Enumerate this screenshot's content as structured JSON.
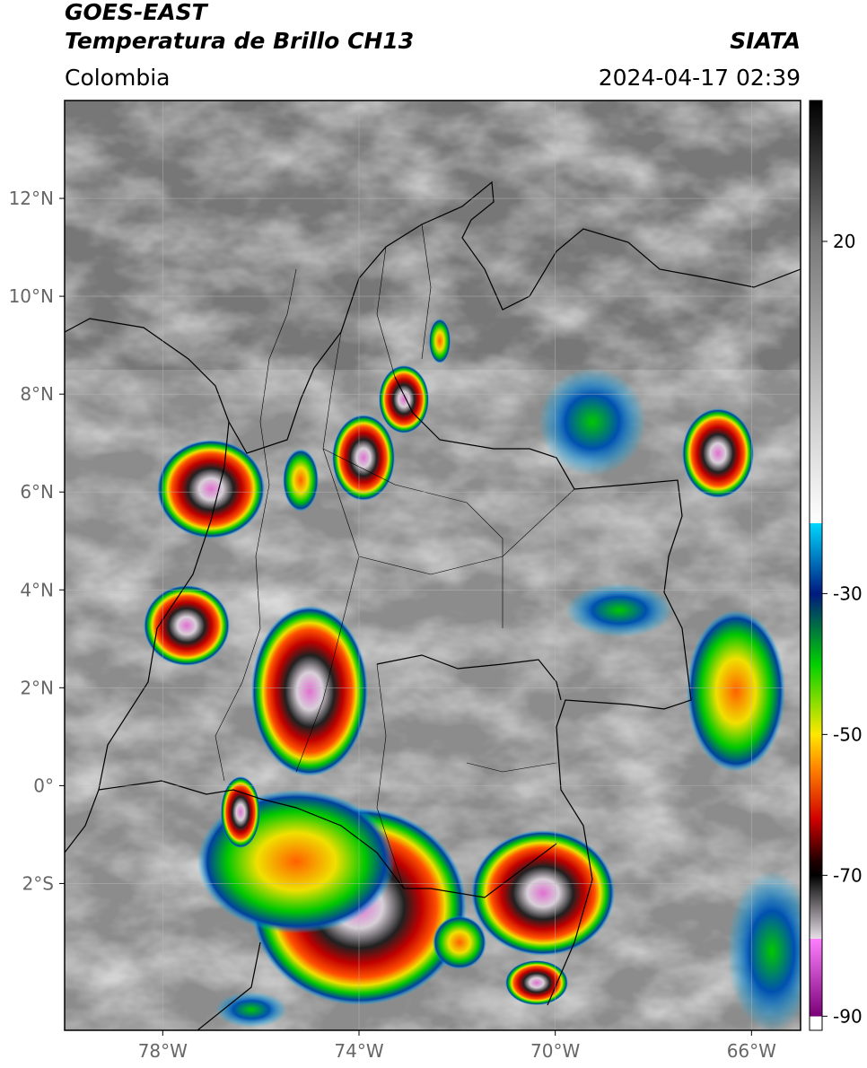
{
  "header": {
    "satellite": "GOES-EAST",
    "product": "Temperatura de Brillo CH13",
    "source": "SIATA",
    "region": "Colombia",
    "datetime": "2024-04-17 02:39"
  },
  "map": {
    "xlim": [
      -80,
      -65
    ],
    "ylim": [
      -5,
      14
    ],
    "xticks": [
      {
        "value": -78,
        "label": "78°W"
      },
      {
        "value": -74,
        "label": "74°W"
      },
      {
        "value": -70,
        "label": "70°W"
      },
      {
        "value": -66,
        "label": "66°W"
      }
    ],
    "yticks": [
      {
        "value": 12,
        "label": "12°N"
      },
      {
        "value": 10,
        "label": "10°N"
      },
      {
        "value": 8,
        "label": "8°N"
      },
      {
        "value": 6,
        "label": "6°N"
      },
      {
        "value": 4,
        "label": "4°N"
      },
      {
        "value": 2,
        "label": "2°N"
      },
      {
        "value": 0,
        "label": "0°"
      },
      {
        "value": -2,
        "label": "2°S"
      }
    ],
    "grid": true
  },
  "colorbar": {
    "lim": [
      -92,
      40
    ],
    "ticks": [
      20,
      -30,
      -50,
      -70,
      -90
    ],
    "stops": [
      {
        "value": 40,
        "color": "#000000"
      },
      {
        "value": 20,
        "color": "#7a7a7a"
      },
      {
        "value": -20,
        "color": "#ffffff"
      },
      {
        "value": -20,
        "color": "#00d8ff"
      },
      {
        "value": -30,
        "color": "#001a80"
      },
      {
        "value": -40,
        "color": "#00d000"
      },
      {
        "value": -50,
        "color": "#ffe800"
      },
      {
        "value": -55,
        "color": "#ff8000"
      },
      {
        "value": -62,
        "color": "#d00000"
      },
      {
        "value": -68,
        "color": "#200000"
      },
      {
        "value": -70,
        "color": "#000000"
      },
      {
        "value": -79,
        "color": "#e8e0e8"
      },
      {
        "value": -79,
        "color": "#ff80ff"
      },
      {
        "value": -90,
        "color": "#7a0078"
      },
      {
        "value": -90,
        "color": "#ffffff"
      },
      {
        "value": -92,
        "color": "#ffffff"
      }
    ]
  }
}
